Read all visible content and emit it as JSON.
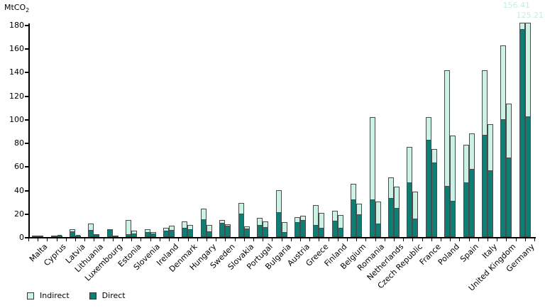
{
  "chart_data": {
    "type": "bar",
    "stacked": true,
    "bars_per_category": 2,
    "title": "",
    "ylabel_base": "MtCO",
    "ylabel_sub": "2",
    "xlabel": "",
    "ylim": [
      0,
      180
    ],
    "yticks": [
      0,
      20,
      40,
      60,
      80,
      100,
      120,
      140,
      160,
      180
    ],
    "grid": false,
    "legend_position": "bottom-left",
    "legend": [
      {
        "label": "Indirect",
        "color": "#ccf2e6"
      },
      {
        "label": "Direct",
        "color": "#0e7d74"
      }
    ],
    "colors": {
      "indirect": "#ccf2e6",
      "direct": "#0e7d74",
      "bar_border": "#4a4a4a",
      "axis": "#000000",
      "annotation_text": "#c3efe0"
    },
    "display_clip_value": 182,
    "categories": [
      "Malta",
      "Cyprus",
      "Latvia",
      "Lithuania",
      "Luxembourg",
      "Estonia",
      "Slovenia",
      "Ireland",
      "Denmark",
      "Hungary",
      "Sweden",
      "Slovakia",
      "Portugal",
      "Bulgaria",
      "Austria",
      "Greece",
      "Finland",
      "Belgium",
      "Romania",
      "Netherlands",
      "Czech Republic",
      "France",
      "Poland",
      "Spain",
      "Italy",
      "United Kingdom",
      "Germany"
    ],
    "values": [
      {
        "name": "Malta",
        "bars": [
          {
            "direct": 0.2,
            "indirect": 0.1
          },
          {
            "direct": 0.3,
            "indirect": 0.15
          }
        ]
      },
      {
        "name": "Cyprus",
        "bars": [
          {
            "direct": 0.9,
            "indirect": 0.3
          },
          {
            "direct": 1.0,
            "indirect": 0.3
          }
        ]
      },
      {
        "name": "Latvia",
        "bars": [
          {
            "direct": 4.5,
            "indirect": 2.0
          },
          {
            "direct": 1.2,
            "indirect": 0.3
          }
        ]
      },
      {
        "name": "Lithuania",
        "bars": [
          {
            "direct": 5.5,
            "indirect": 6.0
          },
          {
            "direct": 1.5,
            "indirect": 0.7
          }
        ]
      },
      {
        "name": "Luxembourg",
        "bars": [
          {
            "direct": 6.3,
            "indirect": 0.3
          },
          {
            "direct": 0.8,
            "indirect": 0.2
          }
        ]
      },
      {
        "name": "Estonia",
        "bars": [
          {
            "direct": 2.0,
            "indirect": 12.5
          },
          {
            "direct": 2.4,
            "indirect": 3.0
          }
        ]
      },
      {
        "name": "Slovenia",
        "bars": [
          {
            "direct": 3.5,
            "indirect": 3.0
          },
          {
            "direct": 2.5,
            "indirect": 1.5
          }
        ]
      },
      {
        "name": "Ireland",
        "bars": [
          {
            "direct": 5.0,
            "indirect": 3.0
          },
          {
            "direct": 5.5,
            "indirect": 4.0
          }
        ]
      },
      {
        "name": "Denmark",
        "bars": [
          {
            "direct": 7.0,
            "indirect": 6.0
          },
          {
            "direct": 6.0,
            "indirect": 4.5
          }
        ]
      },
      {
        "name": "Hungary",
        "bars": [
          {
            "direct": 14.5,
            "indirect": 9.5
          },
          {
            "direct": 4.5,
            "indirect": 5.5
          }
        ]
      },
      {
        "name": "Sweden",
        "bars": [
          {
            "direct": 11.5,
            "indirect": 3.0
          },
          {
            "direct": 9.0,
            "indirect": 2.0
          }
        ]
      },
      {
        "name": "Slovakia",
        "bars": [
          {
            "direct": 19.5,
            "indirect": 9.5
          },
          {
            "direct": 6.5,
            "indirect": 2.5
          }
        ]
      },
      {
        "name": "Portugal",
        "bars": [
          {
            "direct": 9.5,
            "indirect": 6.5
          },
          {
            "direct": 8.0,
            "indirect": 5.5
          }
        ]
      },
      {
        "name": "Bulgaria",
        "bars": [
          {
            "direct": 20.5,
            "indirect": 19.5
          },
          {
            "direct": 3.6,
            "indirect": 8.8
          }
        ]
      },
      {
        "name": "Austria",
        "bars": [
          {
            "direct": 12.0,
            "indirect": 5.0
          },
          {
            "direct": 14.0,
            "indirect": 4.0
          }
        ]
      },
      {
        "name": "Greece",
        "bars": [
          {
            "direct": 9.5,
            "indirect": 17.5
          },
          {
            "direct": 7.0,
            "indirect": 13.5
          }
        ]
      },
      {
        "name": "Finland",
        "bars": [
          {
            "direct": 13.0,
            "indirect": 9.5
          },
          {
            "direct": 7.5,
            "indirect": 11.0
          }
        ]
      },
      {
        "name": "Belgium",
        "bars": [
          {
            "direct": 31.5,
            "indirect": 13.5
          },
          {
            "direct": 18.5,
            "indirect": 9.5
          }
        ]
      },
      {
        "name": "Romania",
        "bars": [
          {
            "direct": 31.5,
            "indirect": 70.0
          },
          {
            "direct": 11.0,
            "indirect": 19.0
          }
        ]
      },
      {
        "name": "Netherlands",
        "bars": [
          {
            "direct": 32.5,
            "indirect": 18.0
          },
          {
            "direct": 24.0,
            "indirect": 19.0
          }
        ]
      },
      {
        "name": "Czech Republic",
        "bars": [
          {
            "direct": 46.0,
            "indirect": 30.5
          },
          {
            "direct": 15.0,
            "indirect": 23.5
          }
        ]
      },
      {
        "name": "France",
        "bars": [
          {
            "direct": 82.0,
            "indirect": 19.5
          },
          {
            "direct": 62.5,
            "indirect": 12.0
          }
        ]
      },
      {
        "name": "Poland",
        "bars": [
          {
            "direct": 42.5,
            "indirect": 99.0
          },
          {
            "direct": 30.0,
            "indirect": 56.0
          }
        ]
      },
      {
        "name": "Spain",
        "bars": [
          {
            "direct": 46.0,
            "indirect": 32.5
          },
          {
            "direct": 57.0,
            "indirect": 31.0
          }
        ]
      },
      {
        "name": "Italy",
        "bars": [
          {
            "direct": 86.0,
            "indirect": 55.5
          },
          {
            "direct": 56.0,
            "indirect": 39.5
          }
        ]
      },
      {
        "name": "United Kingdom",
        "bars": [
          {
            "direct": 99.5,
            "indirect": 63.0
          },
          {
            "direct": 67.0,
            "indirect": 46.0
          }
        ]
      },
      {
        "name": "Germany",
        "bars": [
          {
            "direct": 176.0,
            "indirect": 156.41
          },
          {
            "direct": 102.0,
            "indirect": 125.21
          }
        ]
      }
    ],
    "annotations": [
      {
        "text": "156.41",
        "target": "Germany bar 1 indirect (truncated at axis top)"
      },
      {
        "text": "125.21",
        "target": "Germany bar 2 indirect (truncated at axis top)"
      }
    ]
  }
}
